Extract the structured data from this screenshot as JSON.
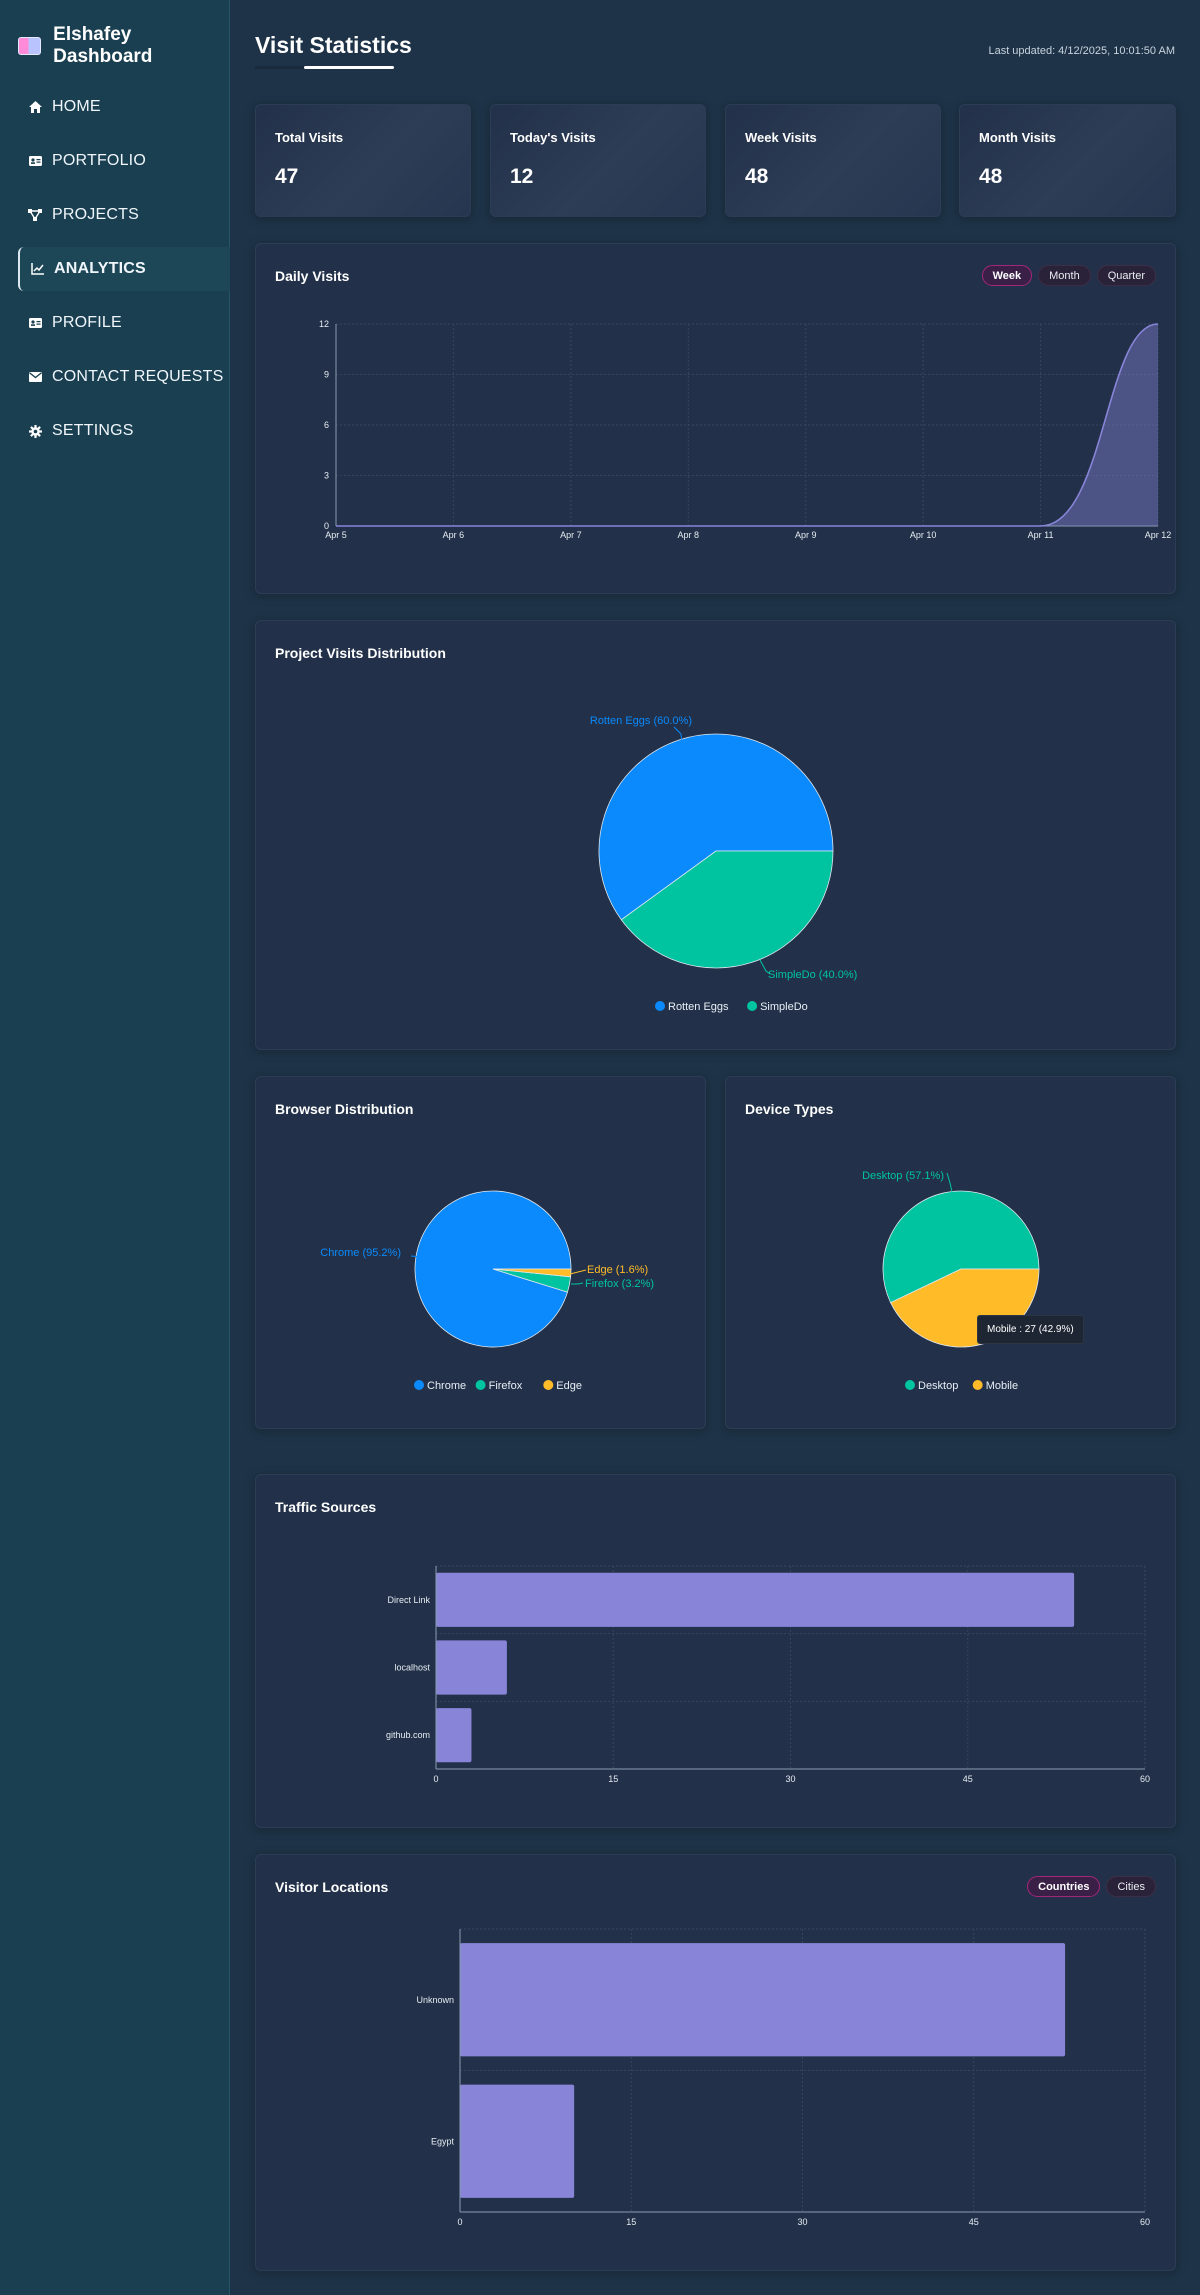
{
  "sidebar": {
    "brand": "Elshafey Dashboard",
    "items": [
      {
        "label": "HOME",
        "icon": "home-icon",
        "active": false
      },
      {
        "label": "PORTFOLIO",
        "icon": "id-card-icon",
        "active": false
      },
      {
        "label": "PROJECTS",
        "icon": "project-network-icon",
        "active": false
      },
      {
        "label": "ANALYTICS",
        "icon": "line-chart-icon",
        "active": true
      },
      {
        "label": "PROFILE",
        "icon": "profile-card-icon",
        "active": false
      },
      {
        "label": "CONTACT REQUESTS",
        "icon": "envelope-icon",
        "active": false
      },
      {
        "label": "SETTINGS",
        "icon": "gear-icon",
        "active": false
      }
    ]
  },
  "header": {
    "title": "Visit Statistics",
    "last_updated": "Last updated: 4/12/2025, 10:01:50 AM"
  },
  "stats": [
    {
      "label": "Total Visits",
      "value": "47"
    },
    {
      "label": "Today's Visits",
      "value": "12"
    },
    {
      "label": "Week Visits",
      "value": "48"
    },
    {
      "label": "Month Visits",
      "value": "48"
    }
  ],
  "daily_visits": {
    "title": "Daily Visits",
    "ranges": [
      "Week",
      "Month",
      "Quarter"
    ],
    "active_range": "Week"
  },
  "project_visits": {
    "title": "Project Visits Distribution"
  },
  "browser": {
    "title": "Browser Distribution"
  },
  "devices": {
    "title": "Device Types",
    "tooltip": "Mobile : 27 (42.9%)"
  },
  "traffic": {
    "title": "Traffic Sources"
  },
  "locations": {
    "title": "Visitor Locations",
    "tabs": [
      "Countries",
      "Cities"
    ],
    "active_tab": "Countries"
  },
  "colors": {
    "blue": "#0a8afc",
    "green": "#00c49f",
    "yellow": "#ffbb28",
    "orange": "#ff8042",
    "purple": "#8884d8",
    "line": "#8884d8"
  },
  "chart_data": [
    {
      "id": "daily",
      "type": "area",
      "title": "Daily Visits",
      "x": [
        "Apr 5",
        "Apr 6",
        "Apr 7",
        "Apr 8",
        "Apr 9",
        "Apr 10",
        "Apr 11",
        "Apr 12"
      ],
      "series": [
        {
          "values": [
            0,
            0,
            0,
            0,
            0,
            0,
            0,
            12
          ]
        }
      ],
      "ylim": [
        0,
        12
      ],
      "yticks": [
        0,
        3,
        6,
        9,
        12
      ],
      "grid": true
    },
    {
      "id": "projects",
      "type": "pie",
      "title": "Project Visits Distribution",
      "slices": [
        {
          "label": "Rotten Eggs",
          "value": 60.0,
          "text": "Rotten Eggs (60.0%)"
        },
        {
          "label": "SimpleDo",
          "value": 40.0,
          "text": "SimpleDo (40.0%)"
        }
      ],
      "legend": "bottom"
    },
    {
      "id": "browser",
      "type": "pie",
      "title": "Browser Distribution",
      "slices": [
        {
          "label": "Chrome",
          "value": 95.2,
          "text": "Chrome (95.2%)"
        },
        {
          "label": "Firefox",
          "value": 3.2,
          "text": "Firefox (3.2%)"
        },
        {
          "label": "Edge",
          "value": 1.6,
          "text": "Edge (1.6%)"
        }
      ],
      "legend": "bottom"
    },
    {
      "id": "devices",
      "type": "pie",
      "title": "Device Types",
      "slices": [
        {
          "label": "Desktop",
          "value": 57.1,
          "text": "Desktop (57.1%)"
        },
        {
          "label": "Mobile",
          "value": 42.9,
          "text": ""
        }
      ],
      "legend": "bottom"
    },
    {
      "id": "traffic",
      "type": "bar",
      "orientation": "horizontal",
      "title": "Traffic Sources",
      "categories": [
        "Direct Link",
        "localhost",
        "github.com"
      ],
      "values": [
        54,
        6,
        3
      ],
      "xlim": [
        0,
        60
      ],
      "xticks": [
        0,
        15,
        30,
        45,
        60
      ],
      "grid": true
    },
    {
      "id": "locations",
      "type": "bar",
      "orientation": "horizontal",
      "title": "Visitor Locations",
      "categories": [
        "Unknown",
        "Egypt"
      ],
      "values": [
        53,
        10
      ],
      "xlim": [
        0,
        60
      ],
      "xticks": [
        0,
        15,
        30,
        45,
        60
      ],
      "grid": true
    }
  ]
}
